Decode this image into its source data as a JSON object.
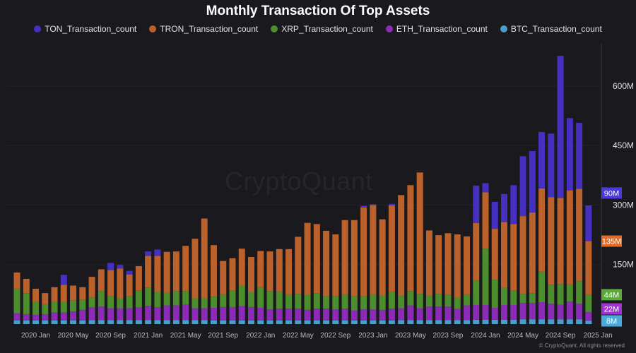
{
  "chart_data": {
    "type": "bar",
    "stacked": true,
    "title": "Monthly Transaction Of Top Assets",
    "xlabel": "",
    "ylabel": "",
    "ylim": [
      0,
      700
    ],
    "y_unit": "M",
    "y_ticks": [
      150,
      300,
      450,
      600
    ],
    "y_tick_labels": [
      "150M",
      "300M",
      "450M",
      "600M"
    ],
    "grid": true,
    "legend_position": "top-center",
    "x_tick_labels": [
      "2020 Jan",
      "2020 May",
      "2020 Sep",
      "2021 Jan",
      "2021 May",
      "2021 Sep",
      "2022 Jan",
      "2022 May",
      "2022 Sep",
      "2023 Jan",
      "2023 May",
      "2023 Sep",
      "2024 Jan",
      "2024 May",
      "2024 Sep",
      "2025 Jan"
    ],
    "categories": [
      "2019-11",
      "2019-12",
      "2020-01",
      "2020-02",
      "2020-03",
      "2020-04",
      "2020-05",
      "2020-06",
      "2020-07",
      "2020-08",
      "2020-09",
      "2020-10",
      "2020-11",
      "2020-12",
      "2021-01",
      "2021-02",
      "2021-03",
      "2021-04",
      "2021-05",
      "2021-06",
      "2021-07",
      "2021-08",
      "2021-09",
      "2021-10",
      "2021-11",
      "2021-12",
      "2022-01",
      "2022-02",
      "2022-03",
      "2022-04",
      "2022-05",
      "2022-06",
      "2022-07",
      "2022-08",
      "2022-09",
      "2022-10",
      "2022-11",
      "2022-12",
      "2023-01",
      "2023-02",
      "2023-03",
      "2023-04",
      "2023-05",
      "2023-06",
      "2023-07",
      "2023-08",
      "2023-09",
      "2023-10",
      "2023-11",
      "2023-12",
      "2024-01",
      "2024-02",
      "2024-03",
      "2024-04",
      "2024-05",
      "2024-06",
      "2024-07",
      "2024-08",
      "2024-09",
      "2024-10",
      "2024-11",
      "2024-12"
    ],
    "series": [
      {
        "name": "BTC_Transaction_count",
        "color": "#4a9fc8",
        "last_label": "8M",
        "values": [
          9,
          9,
          9,
          9,
          9,
          9,
          9,
          9,
          10,
          10,
          10,
          10,
          10,
          10,
          10,
          10,
          10,
          10,
          10,
          10,
          10,
          9,
          9,
          9,
          9,
          9,
          9,
          9,
          9,
          9,
          9,
          9,
          9,
          9,
          9,
          9,
          9,
          9,
          9,
          9,
          9,
          10,
          10,
          10,
          10,
          10,
          10,
          10,
          10,
          11,
          11,
          11,
          11,
          11,
          12,
          12,
          12,
          12,
          12,
          12,
          12,
          8
        ]
      },
      {
        "name": "ETH_Transaction_count",
        "color": "#8a2cb5",
        "last_label": "22M",
        "values": [
          18,
          16,
          14,
          16,
          20,
          20,
          23,
          27,
          32,
          34,
          30,
          30,
          30,
          32,
          36,
          32,
          37,
          37,
          39,
          30,
          30,
          32,
          34,
          34,
          36,
          34,
          32,
          28,
          30,
          30,
          30,
          27,
          30,
          30,
          28,
          30,
          25,
          28,
          28,
          27,
          30,
          30,
          37,
          30,
          34,
          34,
          34,
          28,
          37,
          37,
          37,
          30,
          37,
          37,
          41,
          41,
          43,
          39,
          37,
          45,
          39,
          22
        ]
      },
      {
        "name": "XRP_Transaction_count",
        "color": "#4c8d2d",
        "last_label": "44M",
        "values": [
          62,
          53,
          34,
          25,
          28,
          27,
          28,
          25,
          25,
          39,
          30,
          25,
          30,
          43,
          46,
          39,
          32,
          36,
          34,
          25,
          25,
          28,
          32,
          41,
          52,
          37,
          52,
          46,
          43,
          36,
          37,
          37,
          39,
          32,
          34,
          36,
          36,
          34,
          37,
          36,
          43,
          32,
          36,
          36,
          28,
          32,
          30,
          28,
          28,
          61,
          142,
          71,
          43,
          37,
          23,
          25,
          77,
          48,
          52,
          43,
          57,
          44
        ]
      },
      {
        "name": "TRON_Transaction_count",
        "color": "#bb612b",
        "last_label": "135M",
        "values": [
          41,
          36,
          32,
          28,
          36,
          43,
          37,
          32,
          52,
          55,
          66,
          75,
          55,
          61,
          80,
          91,
          103,
          100,
          114,
          150,
          201,
          130,
          84,
          82,
          93,
          89,
          91,
          100,
          107,
          114,
          144,
          182,
          174,
          164,
          155,
          187,
          192,
          223,
          226,
          192,
          217,
          253,
          267,
          306,
          164,
          148,
          155,
          160,
          146,
          146,
          142,
          128,
          166,
          167,
          196,
          203,
          210,
          221,
          217,
          237,
          233,
          135
        ]
      },
      {
        "name": "TON_Transaction_count",
        "color": "#4630c2",
        "last_label": "90M",
        "values": [
          0,
          0,
          0,
          0,
          0,
          25,
          0,
          0,
          0,
          0,
          18,
          9,
          9,
          0,
          11,
          16,
          0,
          0,
          0,
          0,
          0,
          0,
          0,
          0,
          0,
          0,
          0,
          0,
          0,
          0,
          0,
          0,
          0,
          0,
          0,
          0,
          0,
          4,
          2,
          0,
          4,
          0,
          0,
          0,
          0,
          0,
          0,
          0,
          0,
          94,
          23,
          68,
          71,
          98,
          151,
          155,
          142,
          160,
          358,
          182,
          166,
          90
        ]
      }
    ],
    "legend": [
      "TON_Transaction_count",
      "TRON_Transaction_count",
      "XRP_Transaction_count",
      "ETH_Transaction_count",
      "BTC_Transaction_count"
    ],
    "marker_colors": {
      "TON_Transaction_count": "#4a38e0",
      "TRON_Transaction_count": "#e06d2a",
      "XRP_Transaction_count": "#5aaa3a",
      "ETH_Transaction_count": "#a332d2",
      "BTC_Transaction_count": "#49aadb"
    }
  },
  "watermark": "CryptoQuant",
  "footer": "© CryptoQuant. All rights reserved"
}
